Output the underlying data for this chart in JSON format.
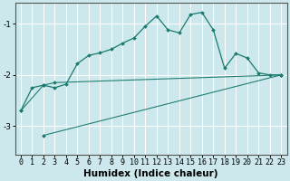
{
  "xlabel": "Humidex (Indice chaleur)",
  "bg_color": "#cde8ec",
  "grid_color": "#ffffff",
  "line_color": "#1a7a6e",
  "spine_color": "#555555",
  "xlim": [
    -0.5,
    23.5
  ],
  "ylim": [
    -3.55,
    -0.6
  ],
  "yticks": [
    -3,
    -2,
    -1
  ],
  "xticks": [
    0,
    1,
    2,
    3,
    4,
    5,
    6,
    7,
    8,
    9,
    10,
    11,
    12,
    13,
    14,
    15,
    16,
    17,
    18,
    19,
    20,
    21,
    22,
    23
  ],
  "line1_x": [
    0,
    1,
    2,
    3,
    4,
    5,
    6,
    7,
    8,
    9,
    10,
    11,
    12,
    13,
    14,
    15,
    16,
    17,
    18,
    19,
    20,
    21,
    22,
    23
  ],
  "line1_y": [
    -2.7,
    -2.25,
    -2.2,
    -2.25,
    -2.18,
    -1.78,
    -1.62,
    -1.57,
    -1.5,
    -1.38,
    -1.28,
    -1.05,
    -0.85,
    -1.12,
    -1.18,
    -0.82,
    -0.78,
    -1.12,
    -1.87,
    -1.58,
    -1.67,
    -1.96,
    -2.0,
    -2.0
  ],
  "line2_x": [
    0,
    2,
    3,
    23
  ],
  "line2_y": [
    -2.7,
    -2.2,
    -2.15,
    -2.0
  ],
  "line3_x": [
    2,
    23
  ],
  "line3_y": [
    -3.18,
    -2.0
  ],
  "marker_size": 2.0,
  "linewidth": 0.9,
  "xlabel_fontsize": 7.5,
  "tick_fontsize": 6.0
}
